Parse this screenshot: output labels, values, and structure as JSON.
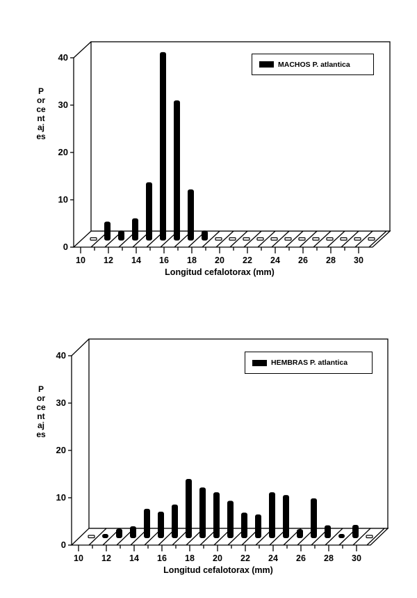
{
  "chart_data": [
    {
      "type": "bar",
      "title": "",
      "legend": [
        "MACHOS P. atlantica"
      ],
      "legend_position": "upper right",
      "xlabel": "Longitud cefalotorax (mm)",
      "ylabel": "Porcentajes",
      "ylim": [
        0,
        40
      ],
      "yticks": [
        "0",
        "10",
        "20",
        "30",
        "40"
      ],
      "xlim": [
        10,
        31
      ],
      "xticks": [
        "10",
        "12",
        "14",
        "16",
        "18",
        "20",
        "22",
        "24",
        "26",
        "28",
        "30"
      ],
      "grid": false,
      "style": "3d",
      "categories": [
        10.5,
        11.5,
        12.5,
        13.5,
        14.5,
        15.5,
        16.5,
        17.5,
        18.5,
        19.5,
        20.5,
        21.5,
        22.5,
        23.5,
        24.5,
        25.5,
        26.5,
        27.5,
        28.5,
        29.5,
        30.5
      ],
      "series": [
        {
          "name": "MACHOS P. atlantica",
          "values": [
            0,
            3.7,
            1.8,
            4.4,
            12,
            39.5,
            29.3,
            10.5,
            1.8,
            0,
            0,
            0,
            0,
            0,
            0,
            0,
            0,
            0,
            0,
            0,
            0
          ]
        }
      ]
    },
    {
      "type": "bar",
      "title": "",
      "legend": [
        "HEMBRAS P. atlantica"
      ],
      "legend_position": "upper right",
      "xlabel": "Longitud cefalotorax (mm)",
      "ylabel": "Porcentajes",
      "ylim": [
        0,
        40
      ],
      "yticks": [
        "0",
        "10",
        "20",
        "30",
        "40"
      ],
      "xlim": [
        10,
        31
      ],
      "xticks": [
        "10",
        "12",
        "14",
        "16",
        "18",
        "20",
        "22",
        "24",
        "26",
        "28",
        "30"
      ],
      "grid": false,
      "style": "3d",
      "categories": [
        10.5,
        11.5,
        12.5,
        13.5,
        14.5,
        15.5,
        16.5,
        17.5,
        18.5,
        19.5,
        20.5,
        21.5,
        22.5,
        23.5,
        24.5,
        25.5,
        26.5,
        27.5,
        28.5,
        29.5,
        30.5
      ],
      "series": [
        {
          "name": "HEMBRAS P. atlantica",
          "values": [
            0,
            0.4,
            1.7,
            2.2,
            5.9,
            5.3,
            6.8,
            12.2,
            10.4,
            9.4,
            7.6,
            5.1,
            4.7,
            9.4,
            8.8,
            1.6,
            8.1,
            2.4,
            0.5,
            2.5,
            0
          ]
        }
      ]
    }
  ],
  "colors": {
    "bar": "#000000",
    "background": "#ffffff",
    "frame": "#000000"
  }
}
